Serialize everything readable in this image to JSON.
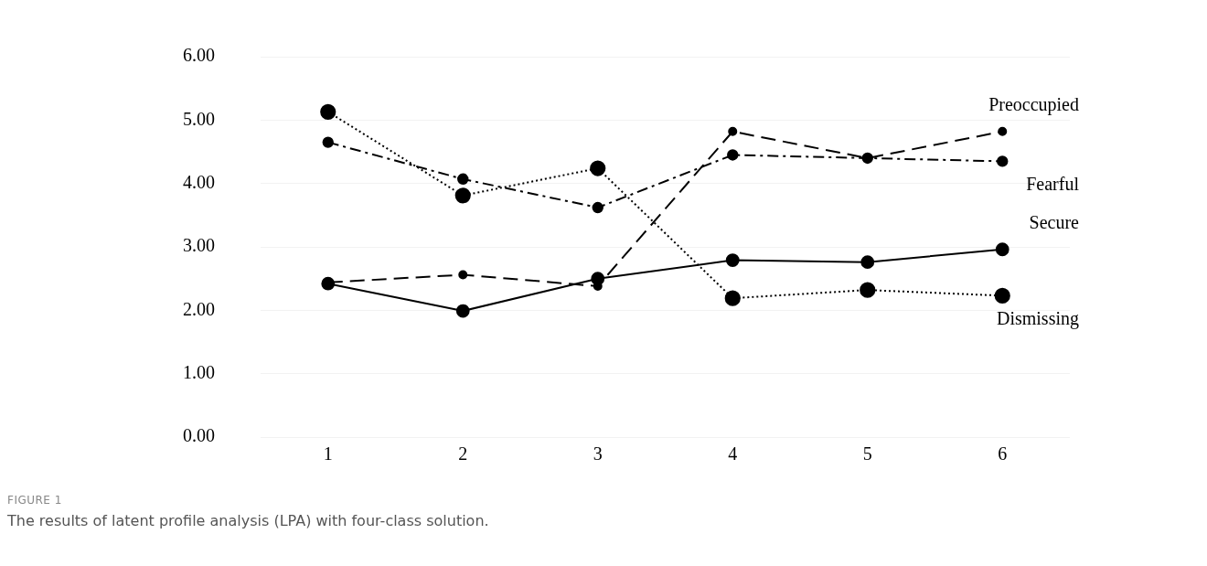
{
  "chart_data": {
    "type": "line",
    "categories": [
      "1",
      "2",
      "3",
      "4",
      "5",
      "6"
    ],
    "series": [
      {
        "name": "Preoccupied",
        "color": "#000000",
        "line_style": "dashed",
        "values": [
          2.44,
          2.56,
          2.38,
          4.82,
          4.4,
          4.82
        ]
      },
      {
        "name": "Fearful",
        "color": "#000000",
        "line_style": "dashdot",
        "values": [
          4.65,
          4.07,
          3.62,
          4.45,
          4.4,
          4.35
        ]
      },
      {
        "name": "Secure",
        "color": "#000000",
        "line_style": "solid",
        "values": [
          2.42,
          1.99,
          2.5,
          2.79,
          2.76,
          2.96
        ]
      },
      {
        "name": "Dismissing",
        "color": "#000000",
        "line_style": "dotted",
        "values": [
          5.13,
          3.81,
          4.24,
          2.19,
          2.32,
          2.23
        ]
      }
    ],
    "ylim": [
      0,
      6
    ],
    "yticks": [
      {
        "value": 0,
        "label": "0.00"
      },
      {
        "value": 1,
        "label": "1.00"
      },
      {
        "value": 2,
        "label": "2.00"
      },
      {
        "value": 3,
        "label": "3.00"
      },
      {
        "value": 4,
        "label": "4.00"
      },
      {
        "value": 5,
        "label": "5.00"
      },
      {
        "value": 6,
        "label": "6.00"
      }
    ],
    "grid": "y",
    "legend": false,
    "marker": "circle",
    "annotations": [
      "FIGURE 1",
      "The results of latent profile analysis (LPA) with four-class solution."
    ]
  }
}
